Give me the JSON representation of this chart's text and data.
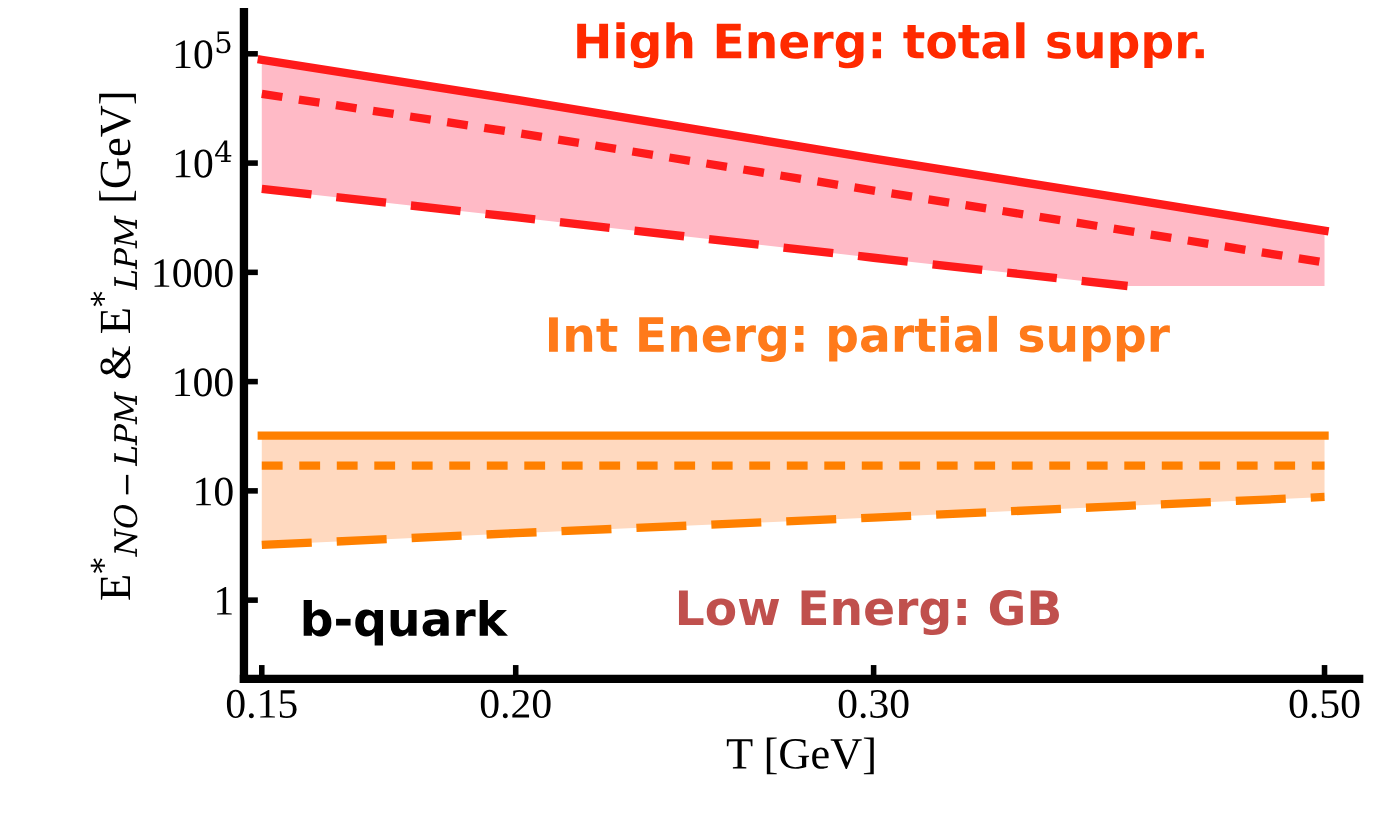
{
  "chart_data": {
    "type": "line",
    "xlabel": "T [GeV]",
    "ylabel": "E$^{*}$$_{NO−LPM}$ & E$^{*}$$_{LPM}$ [GeV]",
    "x": [
      0.15,
      0.2,
      0.3,
      0.4,
      0.5
    ],
    "log": "xy",
    "grid": false,
    "legend": false,
    "marker": "none",
    "xlim": [
      0.147,
      0.52
    ],
    "ylim": [
      0.19,
      240000
    ],
    "xticks": [
      0.15,
      {
        "value": 0.2,
        "label": "0.20"
      },
      {
        "value": 0.3,
        "label": "0.30"
      },
      {
        "value": 0.5,
        "label": "0.50"
      }
    ],
    "yticks": [
      1,
      10,
      100,
      1000,
      {
        "value": 10000,
        "label": "10$^{4}$"
      },
      {
        "value": 100000,
        "label": "10$^{5}$"
      }
    ],
    "series": [
      {
        "color": "#ff1a1a",
        "line_style": "solid",
        "values": [
          88000,
          38000,
          11000,
          4700,
          2400
        ]
      },
      {
        "color": "#ff1a1a",
        "line_style": "dashed",
        "values": [
          43000,
          19000,
          5600,
          2400,
          1230
        ],
        "lower": [
          5800,
          3200,
          1360,
          750,
          750
        ],
        "upper": [
          88000,
          38000,
          11000,
          4700,
          2400
        ]
      },
      {
        "color": "#ff1a1a",
        "line_style": "long_dashed",
        "x": [
          0.15,
          0.2,
          0.3,
          0.4
        ],
        "values": [
          5800,
          3200,
          1360,
          750
        ]
      },
      {
        "color": "#ff8000",
        "line_style": "solid",
        "values": [
          32,
          32,
          32,
          32,
          32
        ]
      },
      {
        "color": "#ff8000",
        "line_style": "dashed",
        "values": [
          17,
          17,
          17,
          17,
          17
        ],
        "lower": [
          3.2,
          4.1,
          5.7,
          7.3,
          8.8
        ],
        "upper": [
          32,
          32,
          32,
          32,
          32
        ]
      },
      {
        "color": "#ff8000",
        "line_style": "long_dashed",
        "values": [
          3.2,
          4.1,
          5.7,
          7.3,
          8.8
        ]
      }
    ],
    "annotations": [
      "High Energ: total suppr.",
      "Int Energ: partial suppr",
      "Low Energ: GB",
      "b-quark"
    ]
  }
}
